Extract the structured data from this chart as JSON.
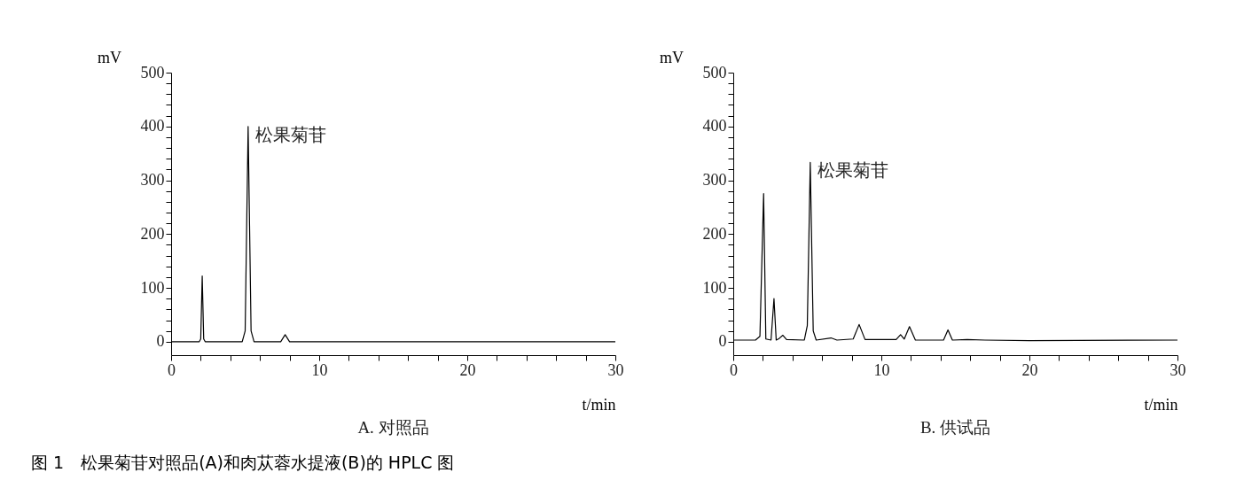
{
  "chart_data": [
    {
      "type": "line",
      "title": "A. 对照品",
      "xlabel": "t/min",
      "ylabel": "mV",
      "xlim": [
        0,
        30
      ],
      "xticks": [
        0,
        {
          "value": 2,
          "label": null
        },
        {
          "value": 4,
          "label": null
        },
        {
          "value": 6,
          "label": null
        },
        {
          "value": 8,
          "label": null
        },
        10,
        {
          "value": 12,
          "label": null
        },
        {
          "value": 14,
          "label": null
        },
        {
          "value": 16,
          "label": null
        },
        {
          "value": 18,
          "label": null
        },
        20,
        {
          "value": 22,
          "label": null
        },
        {
          "value": 24,
          "label": null
        },
        {
          "value": 26,
          "label": null
        },
        {
          "value": 28,
          "label": null
        },
        30
      ],
      "ylim": [
        -25,
        500
      ],
      "yticks": [
        0,
        {
          "value": 20,
          "label": null
        },
        {
          "value": 40,
          "label": null
        },
        {
          "value": 60,
          "label": null
        },
        {
          "value": 80,
          "label": null
        },
        100,
        {
          "value": 120,
          "label": null
        },
        {
          "value": 140,
          "label": null
        },
        {
          "value": 160,
          "label": null
        },
        {
          "value": 180,
          "label": null
        },
        200,
        {
          "value": 220,
          "label": null
        },
        {
          "value": 240,
          "label": null
        },
        {
          "value": 260,
          "label": null
        },
        {
          "value": 280,
          "label": null
        },
        300,
        {
          "value": 320,
          "label": null
        },
        {
          "value": 340,
          "label": null
        },
        {
          "value": 360,
          "label": null
        },
        {
          "value": 380,
          "label": null
        },
        400,
        {
          "value": 420,
          "label": null
        },
        {
          "value": 440,
          "label": null
        },
        {
          "value": 460,
          "label": null
        },
        {
          "value": 480,
          "label": null
        },
        500
      ],
      "grid": false,
      "legend": false,
      "marker": "none",
      "line_style": "solid",
      "series": [
        {
          "color": "#000000",
          "x": [
            0,
            1.9,
            2.0,
            2.1,
            2.2,
            2.3,
            4.8,
            5.0,
            5.2,
            5.4,
            5.6,
            7.4,
            7.7,
            8.0,
            30
          ],
          "values": [
            0,
            0,
            5,
            122,
            5,
            0,
            0,
            20,
            400,
            20,
            0,
            0,
            13,
            0,
            0
          ]
        }
      ],
      "annotations": [
        {
          "text": "松果菊苷",
          "x": 5.2,
          "y": 400
        },
        "图 1　松果菊苷对照品(A)和肉苁蓉水提液(B)的 HPLC 图"
      ]
    },
    {
      "type": "line",
      "title": "B. 供试品",
      "xlabel": "t/min",
      "ylabel": "mV",
      "xlim": [
        0,
        30
      ],
      "xticks": [
        0,
        {
          "value": 2,
          "label": null
        },
        {
          "value": 4,
          "label": null
        },
        {
          "value": 6,
          "label": null
        },
        {
          "value": 8,
          "label": null
        },
        10,
        {
          "value": 12,
          "label": null
        },
        {
          "value": 14,
          "label": null
        },
        {
          "value": 16,
          "label": null
        },
        {
          "value": 18,
          "label": null
        },
        20,
        {
          "value": 22,
          "label": null
        },
        {
          "value": 24,
          "label": null
        },
        {
          "value": 26,
          "label": null
        },
        {
          "value": 28,
          "label": null
        },
        30
      ],
      "ylim": [
        -25,
        500
      ],
      "yticks": [
        0,
        {
          "value": 20,
          "label": null
        },
        {
          "value": 40,
          "label": null
        },
        {
          "value": 60,
          "label": null
        },
        {
          "value": 80,
          "label": null
        },
        100,
        {
          "value": 120,
          "label": null
        },
        {
          "value": 140,
          "label": null
        },
        {
          "value": 160,
          "label": null
        },
        {
          "value": 180,
          "label": null
        },
        200,
        {
          "value": 220,
          "label": null
        },
        {
          "value": 240,
          "label": null
        },
        {
          "value": 260,
          "label": null
        },
        {
          "value": 280,
          "label": null
        },
        300,
        {
          "value": 320,
          "label": null
        },
        {
          "value": 340,
          "label": null
        },
        {
          "value": 360,
          "label": null
        },
        {
          "value": 380,
          "label": null
        },
        400,
        {
          "value": 420,
          "label": null
        },
        {
          "value": 440,
          "label": null
        },
        {
          "value": 460,
          "label": null
        },
        {
          "value": 480,
          "label": null
        },
        500
      ],
      "grid": false,
      "legend": false,
      "marker": "none",
      "line_style": "solid",
      "series": [
        {
          "color": "#000000",
          "x": [
            0,
            1.5,
            1.8,
            2.05,
            2.2,
            2.55,
            2.75,
            2.9,
            3.1,
            3.35,
            3.6,
            4.8,
            5.0,
            5.2,
            5.4,
            5.6,
            6.6,
            7.0,
            8.1,
            8.5,
            8.9,
            11.0,
            11.3,
            11.55,
            11.9,
            12.3,
            14.2,
            14.5,
            14.8,
            15.8,
            17,
            20,
            30
          ],
          "values": [
            3,
            3,
            10,
            275,
            5,
            3,
            80,
            3,
            6,
            12,
            4,
            3,
            30,
            333,
            20,
            3,
            7,
            3,
            5,
            32,
            4,
            4,
            13,
            5,
            28,
            3,
            3,
            22,
            3,
            4,
            3,
            2,
            3
          ]
        }
      ],
      "annotations": [
        {
          "text": "松果菊苷",
          "x": 5.2,
          "y": 333
        }
      ]
    }
  ]
}
